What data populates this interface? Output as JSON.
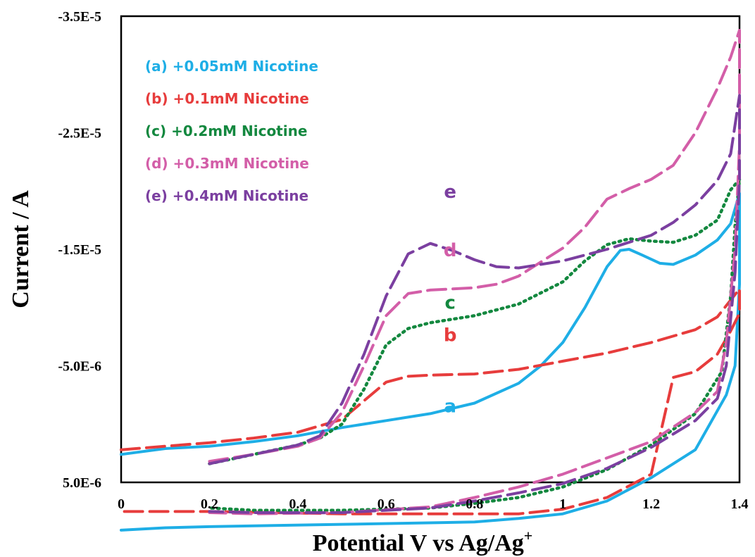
{
  "chart_data": {
    "type": "line",
    "xlabel": "Potential V vs Ag/Ag",
    "xlabel_sup": "+",
    "ylabel": "Current / A",
    "xlim": [
      0,
      1.4
    ],
    "ylim": [
      5e-06,
      -3.5e-05
    ],
    "x_ticks": [
      "0",
      "0.2",
      "0.4",
      "0.6",
      "0.8",
      "1",
      "1.2",
      "1.4"
    ],
    "y_ticks": [
      "-3.5E-5",
      "-2.5E-5",
      "-1.5E-5",
      "-5.0E-6",
      "5.0E-6"
    ],
    "legend_position": "top-left",
    "grid": false,
    "series": [
      {
        "name": "(a) +0.05mM Nicotine",
        "curve_label": "a",
        "color": "#1eaee6",
        "style": "solid",
        "points": [
          [
            0,
            2.6
          ],
          [
            0.1,
            2.1
          ],
          [
            0.2,
            1.9
          ],
          [
            0.3,
            1.5
          ],
          [
            0.4,
            1.0
          ],
          [
            0.5,
            0.3
          ],
          [
            0.6,
            -0.3
          ],
          [
            0.7,
            -0.9
          ],
          [
            0.8,
            -1.8
          ],
          [
            0.9,
            -3.5
          ],
          [
            0.95,
            -5.0
          ],
          [
            1.0,
            -7.0
          ],
          [
            1.05,
            -10.0
          ],
          [
            1.1,
            -13.5
          ],
          [
            1.13,
            -14.9
          ],
          [
            1.15,
            -15.0
          ],
          [
            1.18,
            -14.5
          ],
          [
            1.22,
            -13.8
          ],
          [
            1.25,
            -13.7
          ],
          [
            1.3,
            -14.5
          ],
          [
            1.35,
            -15.8
          ],
          [
            1.38,
            -17.2
          ],
          [
            1.4,
            -19.8
          ],
          [
            1.4,
            -12.0
          ],
          [
            1.39,
            -5.0
          ],
          [
            1.37,
            -2.5
          ],
          [
            1.3,
            2.2
          ],
          [
            1.2,
            4.6
          ],
          [
            1.1,
            6.6
          ],
          [
            1.0,
            7.7
          ],
          [
            0.9,
            8.1
          ],
          [
            0.8,
            8.4
          ],
          [
            0.5,
            8.6
          ],
          [
            0.2,
            8.8
          ],
          [
            0.1,
            8.9
          ],
          [
            0,
            9.1
          ]
        ]
      },
      {
        "name": "(b) +0.1mM Nicotine",
        "curve_label": "b",
        "color": "#e73c3c",
        "style": "dashed",
        "points": [
          [
            0,
            2.2
          ],
          [
            0.1,
            1.9
          ],
          [
            0.2,
            1.6
          ],
          [
            0.3,
            1.2
          ],
          [
            0.4,
            0.7
          ],
          [
            0.5,
            -0.4
          ],
          [
            0.55,
            -2.0
          ],
          [
            0.6,
            -3.6
          ],
          [
            0.65,
            -4.1
          ],
          [
            0.7,
            -4.2
          ],
          [
            0.8,
            -4.3
          ],
          [
            0.9,
            -4.7
          ],
          [
            1.0,
            -5.4
          ],
          [
            1.1,
            -6.1
          ],
          [
            1.2,
            -7.0
          ],
          [
            1.3,
            -8.1
          ],
          [
            1.35,
            -9.2
          ],
          [
            1.4,
            -11.6
          ],
          [
            1.4,
            -9.5
          ],
          [
            1.38,
            -8.0
          ],
          [
            1.35,
            -6.0
          ],
          [
            1.3,
            -4.5
          ],
          [
            1.25,
            -4.0
          ],
          [
            1.2,
            4.3
          ],
          [
            1.1,
            6.3
          ],
          [
            1.0,
            7.3
          ],
          [
            0.9,
            7.7
          ],
          [
            0.5,
            7.7
          ],
          [
            0.2,
            7.5
          ],
          [
            0,
            7.5
          ]
        ]
      },
      {
        "name": "(c) +0.2mM Nicotine",
        "curve_label": "c",
        "color": "#13883f",
        "style": "dotted",
        "points": [
          [
            0.2,
            3.4
          ],
          [
            0.3,
            2.6
          ],
          [
            0.4,
            1.8
          ],
          [
            0.45,
            1.2
          ],
          [
            0.5,
            0.0
          ],
          [
            0.55,
            -3.0
          ],
          [
            0.6,
            -6.8
          ],
          [
            0.65,
            -8.2
          ],
          [
            0.7,
            -8.7
          ],
          [
            0.8,
            -9.3
          ],
          [
            0.9,
            -10.3
          ],
          [
            1.0,
            -12.2
          ],
          [
            1.05,
            -14.0
          ],
          [
            1.1,
            -15.4
          ],
          [
            1.15,
            -15.9
          ],
          [
            1.2,
            -15.7
          ],
          [
            1.25,
            -15.6
          ],
          [
            1.3,
            -16.2
          ],
          [
            1.35,
            -17.5
          ],
          [
            1.38,
            -20.1
          ],
          [
            1.4,
            -21.0
          ],
          [
            1.39,
            -17.0
          ],
          [
            1.38,
            -11.0
          ],
          [
            1.36,
            -4.5
          ],
          [
            1.3,
            -0.9
          ],
          [
            1.2,
            1.8
          ],
          [
            1.1,
            3.9
          ],
          [
            1.0,
            5.4
          ],
          [
            0.9,
            6.3
          ],
          [
            0.8,
            6.8
          ],
          [
            0.7,
            7.2
          ],
          [
            0.5,
            7.4
          ],
          [
            0.3,
            7.4
          ],
          [
            0.2,
            7.2
          ]
        ]
      },
      {
        "name": "(d) +0.3mM Nicotine",
        "curve_label": "d",
        "color": "#d35ea8",
        "style": "dashed",
        "points": [
          [
            0.2,
            3.2
          ],
          [
            0.3,
            2.6
          ],
          [
            0.4,
            1.9
          ],
          [
            0.45,
            1.2
          ],
          [
            0.5,
            -1.0
          ],
          [
            0.55,
            -5.0
          ],
          [
            0.6,
            -9.3
          ],
          [
            0.65,
            -11.2
          ],
          [
            0.7,
            -11.5
          ],
          [
            0.8,
            -11.7
          ],
          [
            0.85,
            -12.0
          ],
          [
            0.9,
            -12.7
          ],
          [
            1.0,
            -15.1
          ],
          [
            1.05,
            -16.9
          ],
          [
            1.1,
            -19.3
          ],
          [
            1.15,
            -20.2
          ],
          [
            1.2,
            -21.0
          ],
          [
            1.25,
            -22.2
          ],
          [
            1.3,
            -25.0
          ],
          [
            1.35,
            -28.8
          ],
          [
            1.38,
            -31.5
          ],
          [
            1.4,
            -33.8
          ],
          [
            1.4,
            -24.0
          ],
          [
            1.39,
            -15.0
          ],
          [
            1.37,
            -7.0
          ],
          [
            1.35,
            -2.8
          ],
          [
            1.3,
            -1.0
          ],
          [
            1.2,
            1.5
          ],
          [
            1.0,
            4.3
          ],
          [
            0.9,
            5.4
          ],
          [
            0.8,
            6.3
          ],
          [
            0.7,
            7.1
          ],
          [
            0.5,
            7.6
          ],
          [
            0.3,
            7.7
          ],
          [
            0.2,
            7.6
          ]
        ]
      },
      {
        "name": "(e) +0.4mM Nicotine",
        "curve_label": "e",
        "color": "#7b3fa0",
        "style": "dashed",
        "points": [
          [
            0.2,
            3.4
          ],
          [
            0.3,
            2.6
          ],
          [
            0.4,
            1.8
          ],
          [
            0.45,
            1.0
          ],
          [
            0.5,
            -1.8
          ],
          [
            0.55,
            -6.0
          ],
          [
            0.6,
            -11.0
          ],
          [
            0.65,
            -14.6
          ],
          [
            0.7,
            -15.5
          ],
          [
            0.75,
            -14.9
          ],
          [
            0.8,
            -14.1
          ],
          [
            0.85,
            -13.5
          ],
          [
            0.9,
            -13.4
          ],
          [
            1.0,
            -14.0
          ],
          [
            1.1,
            -15.0
          ],
          [
            1.15,
            -15.6
          ],
          [
            1.2,
            -16.2
          ],
          [
            1.25,
            -17.3
          ],
          [
            1.3,
            -18.8
          ],
          [
            1.35,
            -20.9
          ],
          [
            1.38,
            -23.2
          ],
          [
            1.4,
            -28.2
          ],
          [
            1.4,
            -21.0
          ],
          [
            1.39,
            -13.0
          ],
          [
            1.37,
            -5.0
          ],
          [
            1.35,
            -2.2
          ],
          [
            1.3,
            -0.3
          ],
          [
            1.2,
            2.0
          ],
          [
            1.1,
            3.8
          ],
          [
            1.0,
            5.1
          ],
          [
            0.9,
            5.9
          ],
          [
            0.8,
            6.6
          ],
          [
            0.7,
            7.2
          ],
          [
            0.5,
            7.6
          ],
          [
            0.3,
            7.6
          ],
          [
            0.2,
            7.5
          ]
        ]
      }
    ]
  }
}
